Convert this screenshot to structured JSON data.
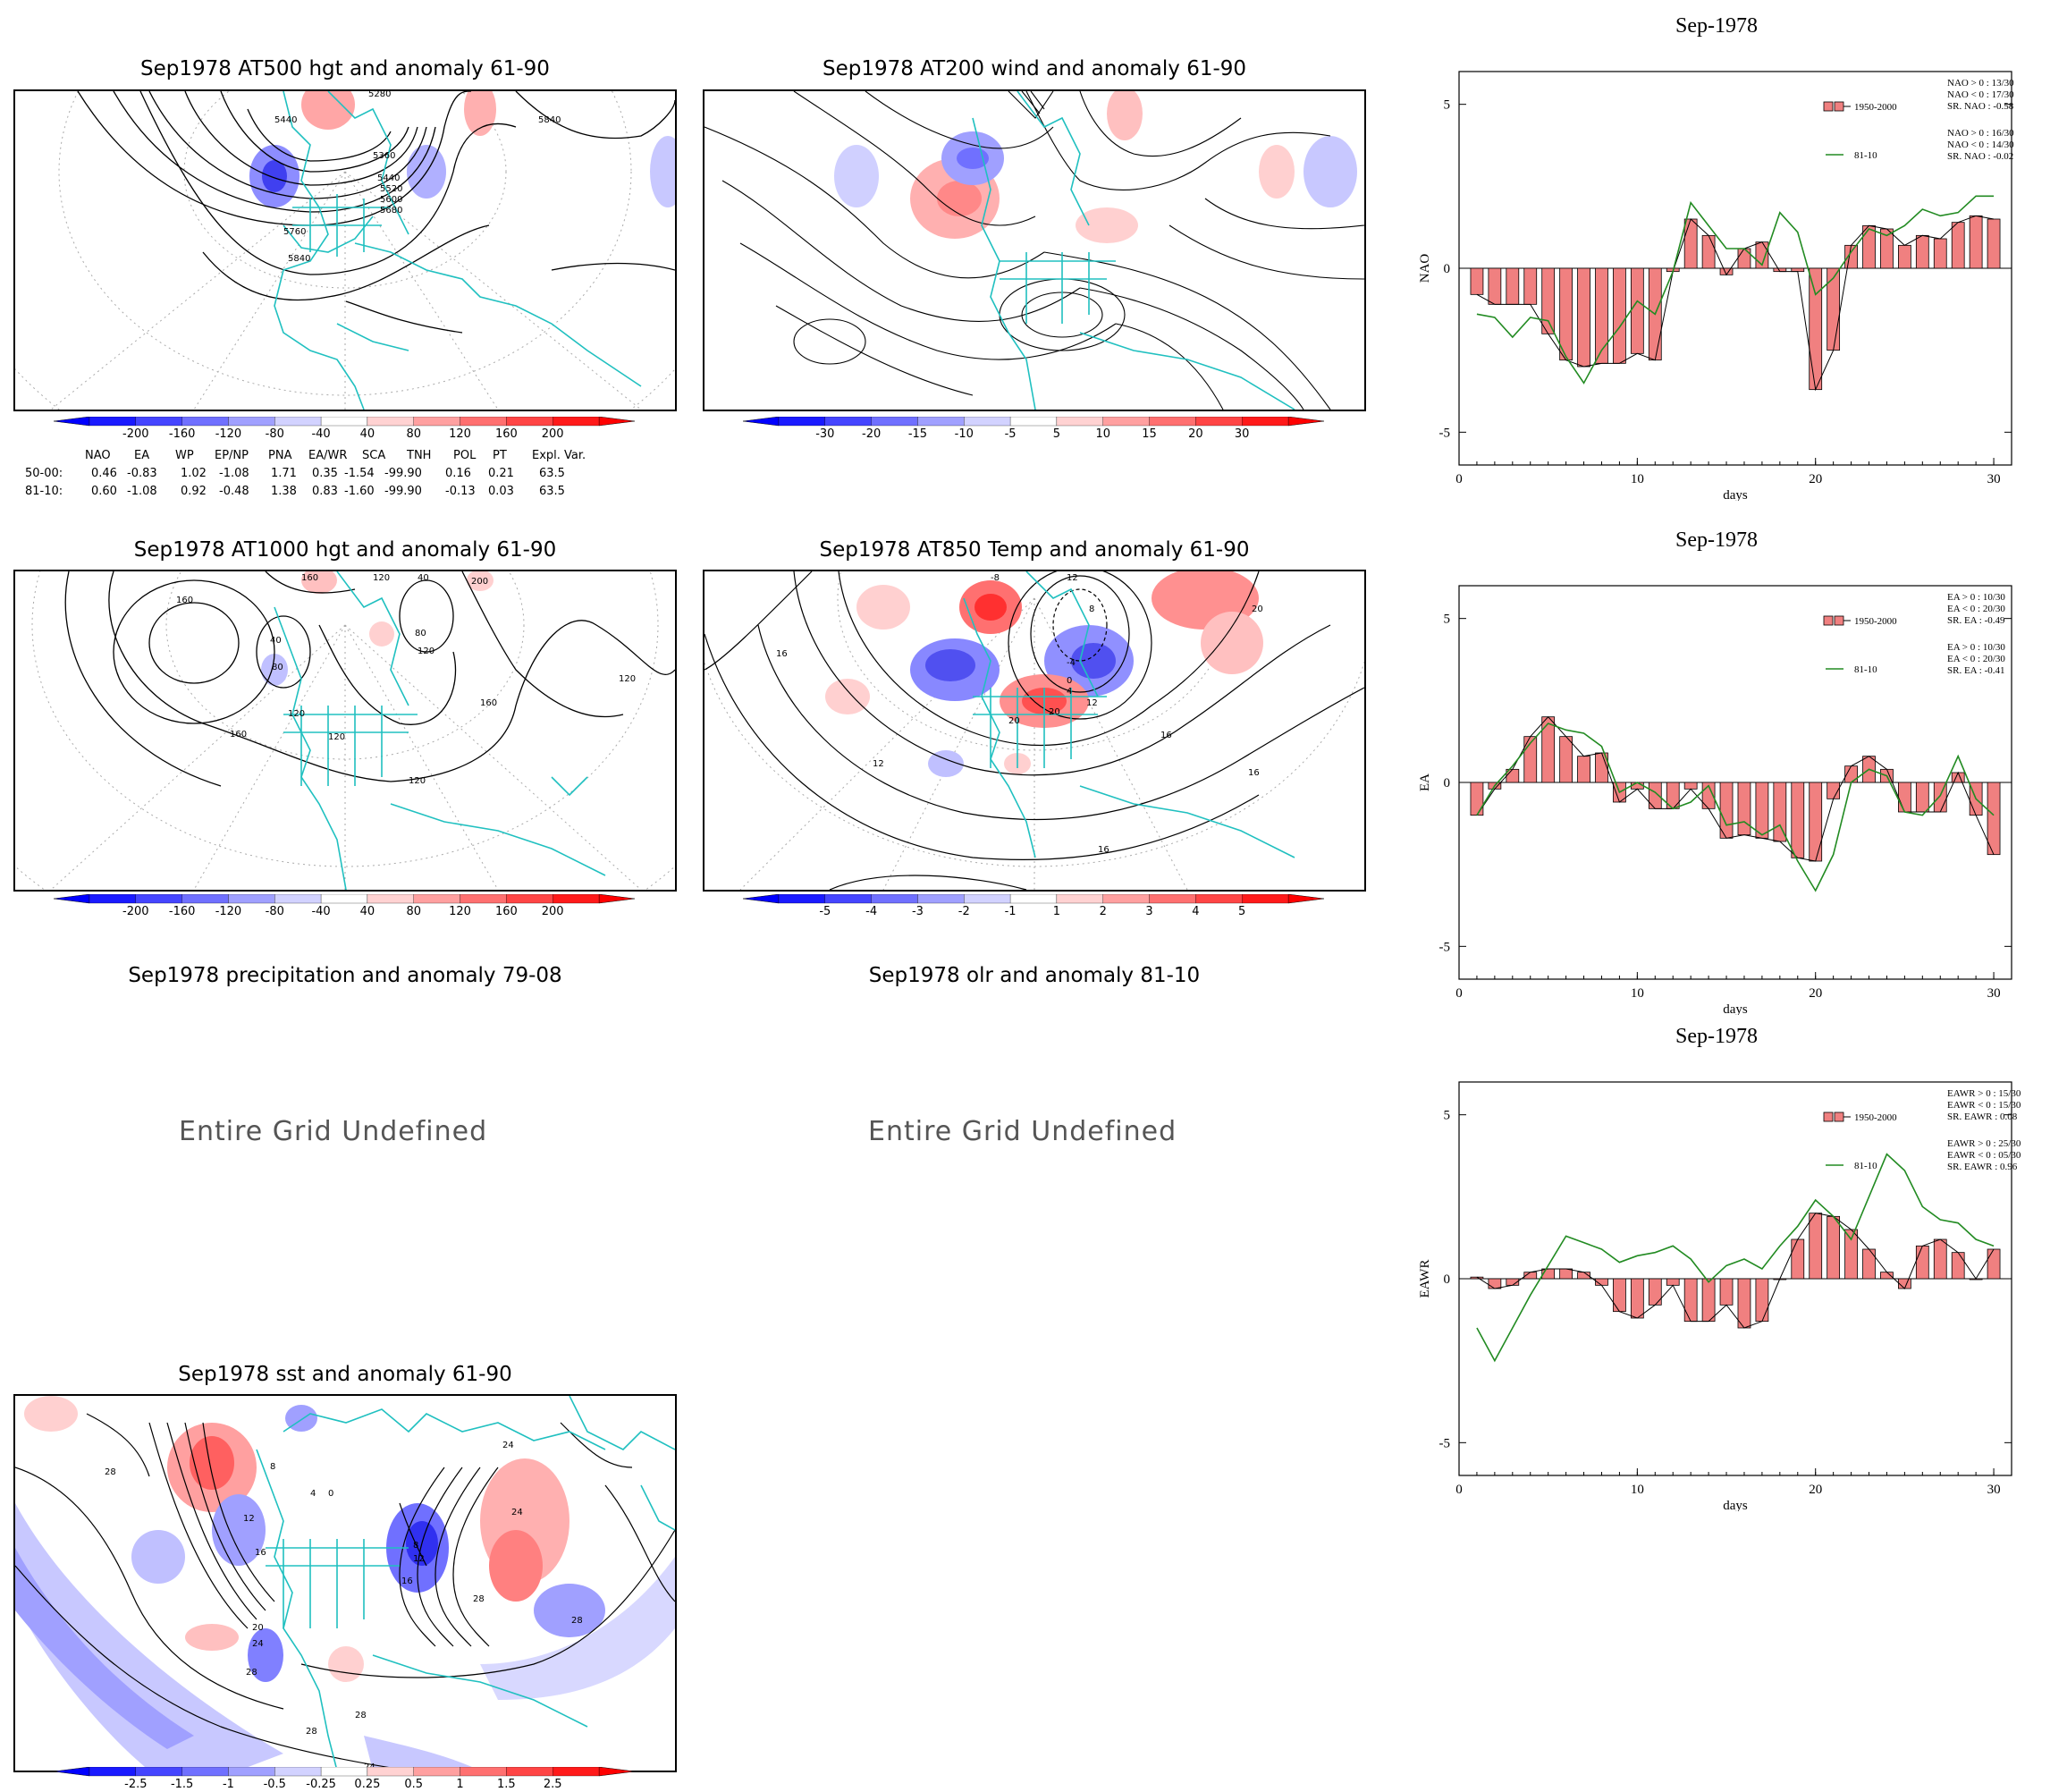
{
  "maps": {
    "at500": {
      "title": "Sep1978 AT500 hgt and anomaly 61-90",
      "contour_labels": [
        "5440",
        "5840",
        "5360",
        "5440",
        "5520",
        "5600",
        "5680",
        "5760",
        "5840",
        "5280"
      ],
      "colorbar": [
        "-200",
        "-160",
        "-120",
        "-80",
        "-40",
        "40",
        "80",
        "120",
        "160",
        "200"
      ]
    },
    "at200": {
      "title": "Sep1978 AT200 wind and anomaly 61-90",
      "colorbar": [
        "-30",
        "-20",
        "-15",
        "-10",
        "-5",
        "5",
        "10",
        "15",
        "20",
        "30"
      ]
    },
    "at1000": {
      "title": "Sep1978 AT1000 hgt and anomaly 61-90",
      "contour_labels": [
        "160",
        "40",
        "80",
        "120",
        "160",
        "120",
        "40",
        "80",
        "200",
        "120",
        "160",
        "160",
        "120",
        "120",
        "120"
      ],
      "colorbar": [
        "-200",
        "-160",
        "-120",
        "-80",
        "-40",
        "40",
        "80",
        "120",
        "160",
        "200"
      ]
    },
    "at850": {
      "title": "Sep1978 AT850 Temp and anomaly 61-90",
      "contour_labels": [
        "16",
        "-8",
        "12",
        "8",
        "20",
        "-4",
        "0",
        "4",
        "12",
        "20",
        "16",
        "12",
        "16",
        "20",
        "16"
      ],
      "colorbar": [
        "-5",
        "-4",
        "-3",
        "-2",
        "-1",
        "1",
        "2",
        "3",
        "4",
        "5"
      ]
    },
    "precip": {
      "title": "Sep1978 precipitation and anomaly 79-08",
      "message": "Entire Grid Undefined"
    },
    "olr": {
      "title": "Sep1978 olr and anomaly 81-10",
      "message": "Entire Grid Undefined"
    },
    "sst": {
      "title": "Sep1978 sst and anomaly 61-90",
      "contour_labels": [
        "28",
        "12",
        "16",
        "20",
        "24",
        "28",
        "8",
        "4",
        "0",
        "8",
        "12",
        "16",
        "24",
        "28",
        "24",
        "28",
        "28",
        "28",
        "24"
      ],
      "colorbar": [
        "-2.5",
        "-1.5",
        "-1",
        "-0.5",
        "-0.25",
        "0.25",
        "0.5",
        "1",
        "1.5",
        "2.5"
      ]
    }
  },
  "teleconnection_table": {
    "headers": [
      "NAO",
      "EA",
      "WP",
      "EP/NP",
      "PNA",
      "EA/WR",
      "SCA",
      "TNH",
      "POL",
      "PT",
      "Expl. Var."
    ],
    "rows": [
      {
        "label": "50-00:",
        "values": [
          "0.46",
          "-0.83",
          "1.02",
          "-1.08",
          "1.71",
          "0.35",
          "-1.54",
          "-99.90",
          "0.16",
          "0.21",
          "63.5"
        ]
      },
      {
        "label": "81-10:",
        "values": [
          "0.60",
          "-1.08",
          "0.92",
          "-0.48",
          "1.38",
          "0.83",
          "-1.60",
          "-99.90",
          "-0.13",
          "0.03",
          "63.5"
        ]
      }
    ]
  },
  "colors": {
    "negative_dark": "#0000ff",
    "positive_dark": "#ff0000",
    "coast": "#20c0c0",
    "bar_fill": "#f08080",
    "line_8110": "#228b22"
  },
  "chart_data": [
    {
      "type": "bar",
      "title": "Sep-1978",
      "ylabel": "NAO",
      "xlabel": "days",
      "xlim": [
        0,
        31
      ],
      "ylim": [
        -6,
        6
      ],
      "xticks": [
        "0",
        "10",
        "20",
        "30"
      ],
      "yticks": [
        "5",
        "0",
        "-5"
      ],
      "legend": {
        "bar_name": "1950-2000",
        "line_name": "81-10",
        "stats_a": [
          "NAO > 0 : 13/30",
          "NAO < 0 : 17/30",
          "SR. NAO : -0.58"
        ],
        "stats_b": [
          "NAO > 0 : 16/30",
          "NAO < 0 : 14/30",
          "SR. NAO : -0.02"
        ]
      },
      "x": [
        1,
        2,
        3,
        4,
        5,
        6,
        7,
        8,
        9,
        10,
        11,
        12,
        13,
        14,
        15,
        16,
        17,
        18,
        19,
        20,
        21,
        22,
        23,
        24,
        25,
        26,
        27,
        28,
        29,
        30
      ],
      "series": [
        {
          "name": "1950-2000",
          "values": [
            -0.8,
            -1.1,
            -1.1,
            -1.1,
            -2.0,
            -2.8,
            -3.0,
            -2.9,
            -2.9,
            -2.6,
            -2.8,
            -0.1,
            1.5,
            1.0,
            -0.2,
            0.6,
            0.8,
            -0.1,
            -0.1,
            -3.7,
            -2.5,
            0.7,
            1.3,
            1.2,
            0.7,
            1.0,
            0.9,
            1.4,
            1.6,
            1.5
          ]
        },
        {
          "name": "81-10",
          "values": [
            -1.4,
            -1.5,
            -2.1,
            -1.5,
            -1.6,
            -2.7,
            -3.5,
            -2.5,
            -1.8,
            -1.0,
            -1.4,
            -0.1,
            2.0,
            1.3,
            0.6,
            0.6,
            0.1,
            1.7,
            1.1,
            -0.8,
            -0.3,
            0.5,
            1.2,
            1.0,
            1.3,
            1.8,
            1.6,
            1.7,
            2.2,
            2.2
          ]
        }
      ]
    },
    {
      "type": "bar",
      "title": "Sep-1978",
      "ylabel": "EA",
      "xlabel": "days",
      "xlim": [
        0,
        31
      ],
      "ylim": [
        -6,
        6
      ],
      "xticks": [
        "0",
        "10",
        "20",
        "30"
      ],
      "yticks": [
        "5",
        "0",
        "-5"
      ],
      "legend": {
        "bar_name": "1950-2000",
        "line_name": "81-10",
        "stats_a": [
          "EA > 0 : 10/30",
          "EA < 0 : 20/30",
          "SR. EA : -0.49"
        ],
        "stats_b": [
          "EA > 0 : 10/30",
          "EA < 0 : 20/30",
          "SR. EA : -0.41"
        ]
      },
      "x": [
        1,
        2,
        3,
        4,
        5,
        6,
        7,
        8,
        9,
        10,
        11,
        12,
        13,
        14,
        15,
        16,
        17,
        18,
        19,
        20,
        21,
        22,
        23,
        24,
        25,
        26,
        27,
        28,
        29,
        30
      ],
      "series": [
        {
          "name": "1950-2000",
          "values": [
            -1.0,
            -0.2,
            0.4,
            1.4,
            2.0,
            1.4,
            0.8,
            0.9,
            -0.6,
            -0.2,
            -0.8,
            -0.8,
            -0.2,
            -0.8,
            -1.7,
            -1.6,
            -1.7,
            -1.8,
            -2.3,
            -2.4,
            -0.5,
            0.5,
            0.8,
            0.4,
            -0.9,
            -0.9,
            -0.9,
            0.3,
            -1.0,
            -2.2
          ]
        },
        {
          "name": "81-10",
          "values": [
            -1.0,
            -0.1,
            0.5,
            1.2,
            1.8,
            1.6,
            1.5,
            1.1,
            -0.3,
            0.0,
            -0.3,
            -0.8,
            -0.6,
            -0.1,
            -1.3,
            -1.2,
            -1.6,
            -1.3,
            -2.4,
            -3.3,
            -2.2,
            0.0,
            0.4,
            0.2,
            -0.9,
            -1.0,
            -0.4,
            0.8,
            -0.5,
            -1.0
          ]
        }
      ]
    },
    {
      "type": "bar",
      "title": "Sep-1978",
      "ylabel": "EAWR",
      "xlabel": "days",
      "xlim": [
        0,
        31
      ],
      "ylim": [
        -6,
        6
      ],
      "xticks": [
        "0",
        "10",
        "20",
        "30"
      ],
      "yticks": [
        "5",
        "0",
        "-5"
      ],
      "legend": {
        "bar_name": "1950-2000",
        "line_name": "81-10",
        "stats_a": [
          "EAWR > 0 : 15/30",
          "EAWR < 0 : 15/30",
          "SR. EAWR : 0.08"
        ],
        "stats_b": [
          "EAWR > 0 : 25/30",
          "EAWR < 0 : 05/30",
          "SR. EAWR : 0.96"
        ]
      },
      "x": [
        1,
        2,
        3,
        4,
        5,
        6,
        7,
        8,
        9,
        10,
        11,
        12,
        13,
        14,
        15,
        16,
        17,
        18,
        19,
        20,
        21,
        22,
        23,
        24,
        25,
        26,
        27,
        28,
        29,
        30
      ],
      "series": [
        {
          "name": "1950-2000",
          "values": [
            0.05,
            -0.3,
            -0.2,
            0.2,
            0.3,
            0.3,
            0.2,
            -0.2,
            -1.0,
            -1.2,
            -0.8,
            -0.2,
            -1.3,
            -1.3,
            -0.8,
            -1.5,
            -1.3,
            0.0,
            1.2,
            2.0,
            1.9,
            1.5,
            0.9,
            0.2,
            -0.3,
            1.0,
            1.2,
            0.8,
            0.0,
            0.9
          ]
        },
        {
          "name": "81-10",
          "values": [
            -1.5,
            -2.5,
            -1.5,
            -0.5,
            0.4,
            1.3,
            1.1,
            0.9,
            0.5,
            0.7,
            0.8,
            1.0,
            0.6,
            -0.1,
            0.4,
            0.6,
            0.3,
            1.0,
            1.6,
            2.4,
            1.9,
            1.2,
            2.5,
            3.8,
            3.3,
            2.2,
            1.8,
            1.7,
            1.2,
            1.0
          ]
        }
      ]
    }
  ]
}
